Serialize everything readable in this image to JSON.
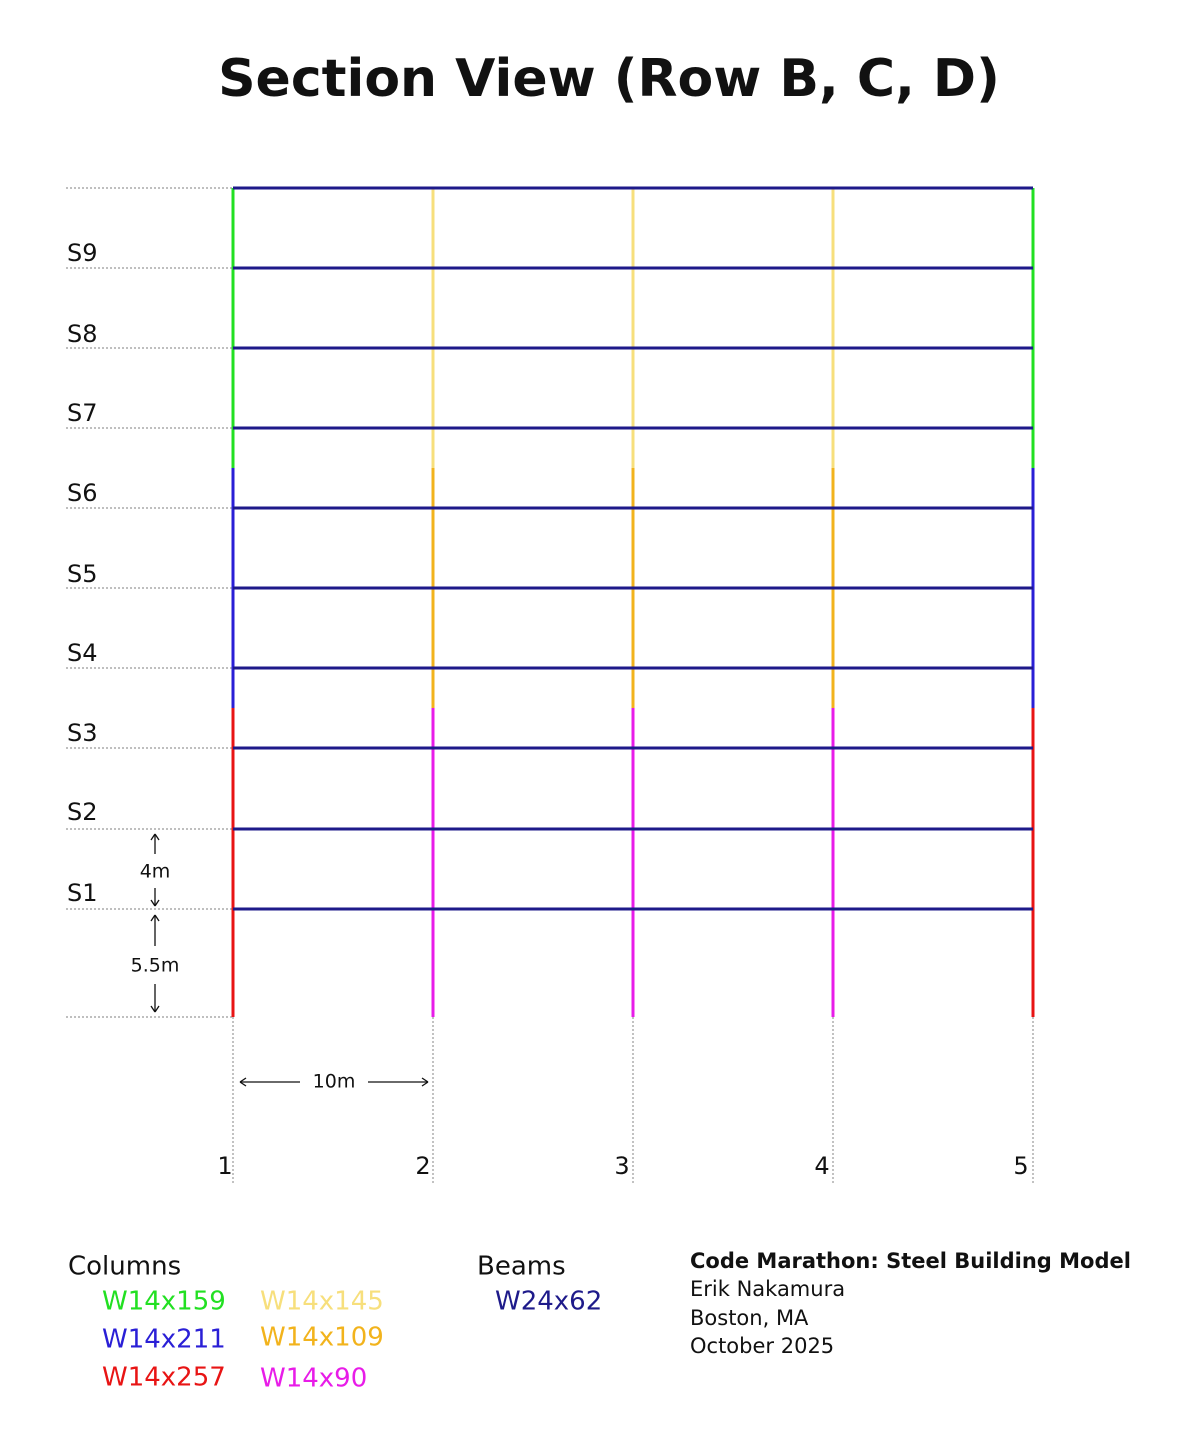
{
  "title": "Section View (Row B, C, D)",
  "stories": [
    "S9",
    "S8",
    "S7",
    "S6",
    "S5",
    "S4",
    "S3",
    "S2",
    "S1"
  ],
  "dimensions": {
    "story_height": "4m",
    "ground_height": "5.5m",
    "bay_width": "10m"
  },
  "grid_lines": [
    "1",
    "2",
    "3",
    "4",
    "5"
  ],
  "legend": {
    "columns": {
      "title": "Columns",
      "items": [
        "W14x159",
        "W14x211",
        "W14x257",
        "W14x145",
        "W14x109",
        "W14x90"
      ]
    },
    "beams": {
      "title": "Beams",
      "items": [
        "W24x62"
      ]
    }
  },
  "credits": {
    "project": "Code Marathon: Steel Building Model",
    "author": "Erik Nakamura",
    "location": "Boston, MA",
    "date": "October 2025"
  }
}
